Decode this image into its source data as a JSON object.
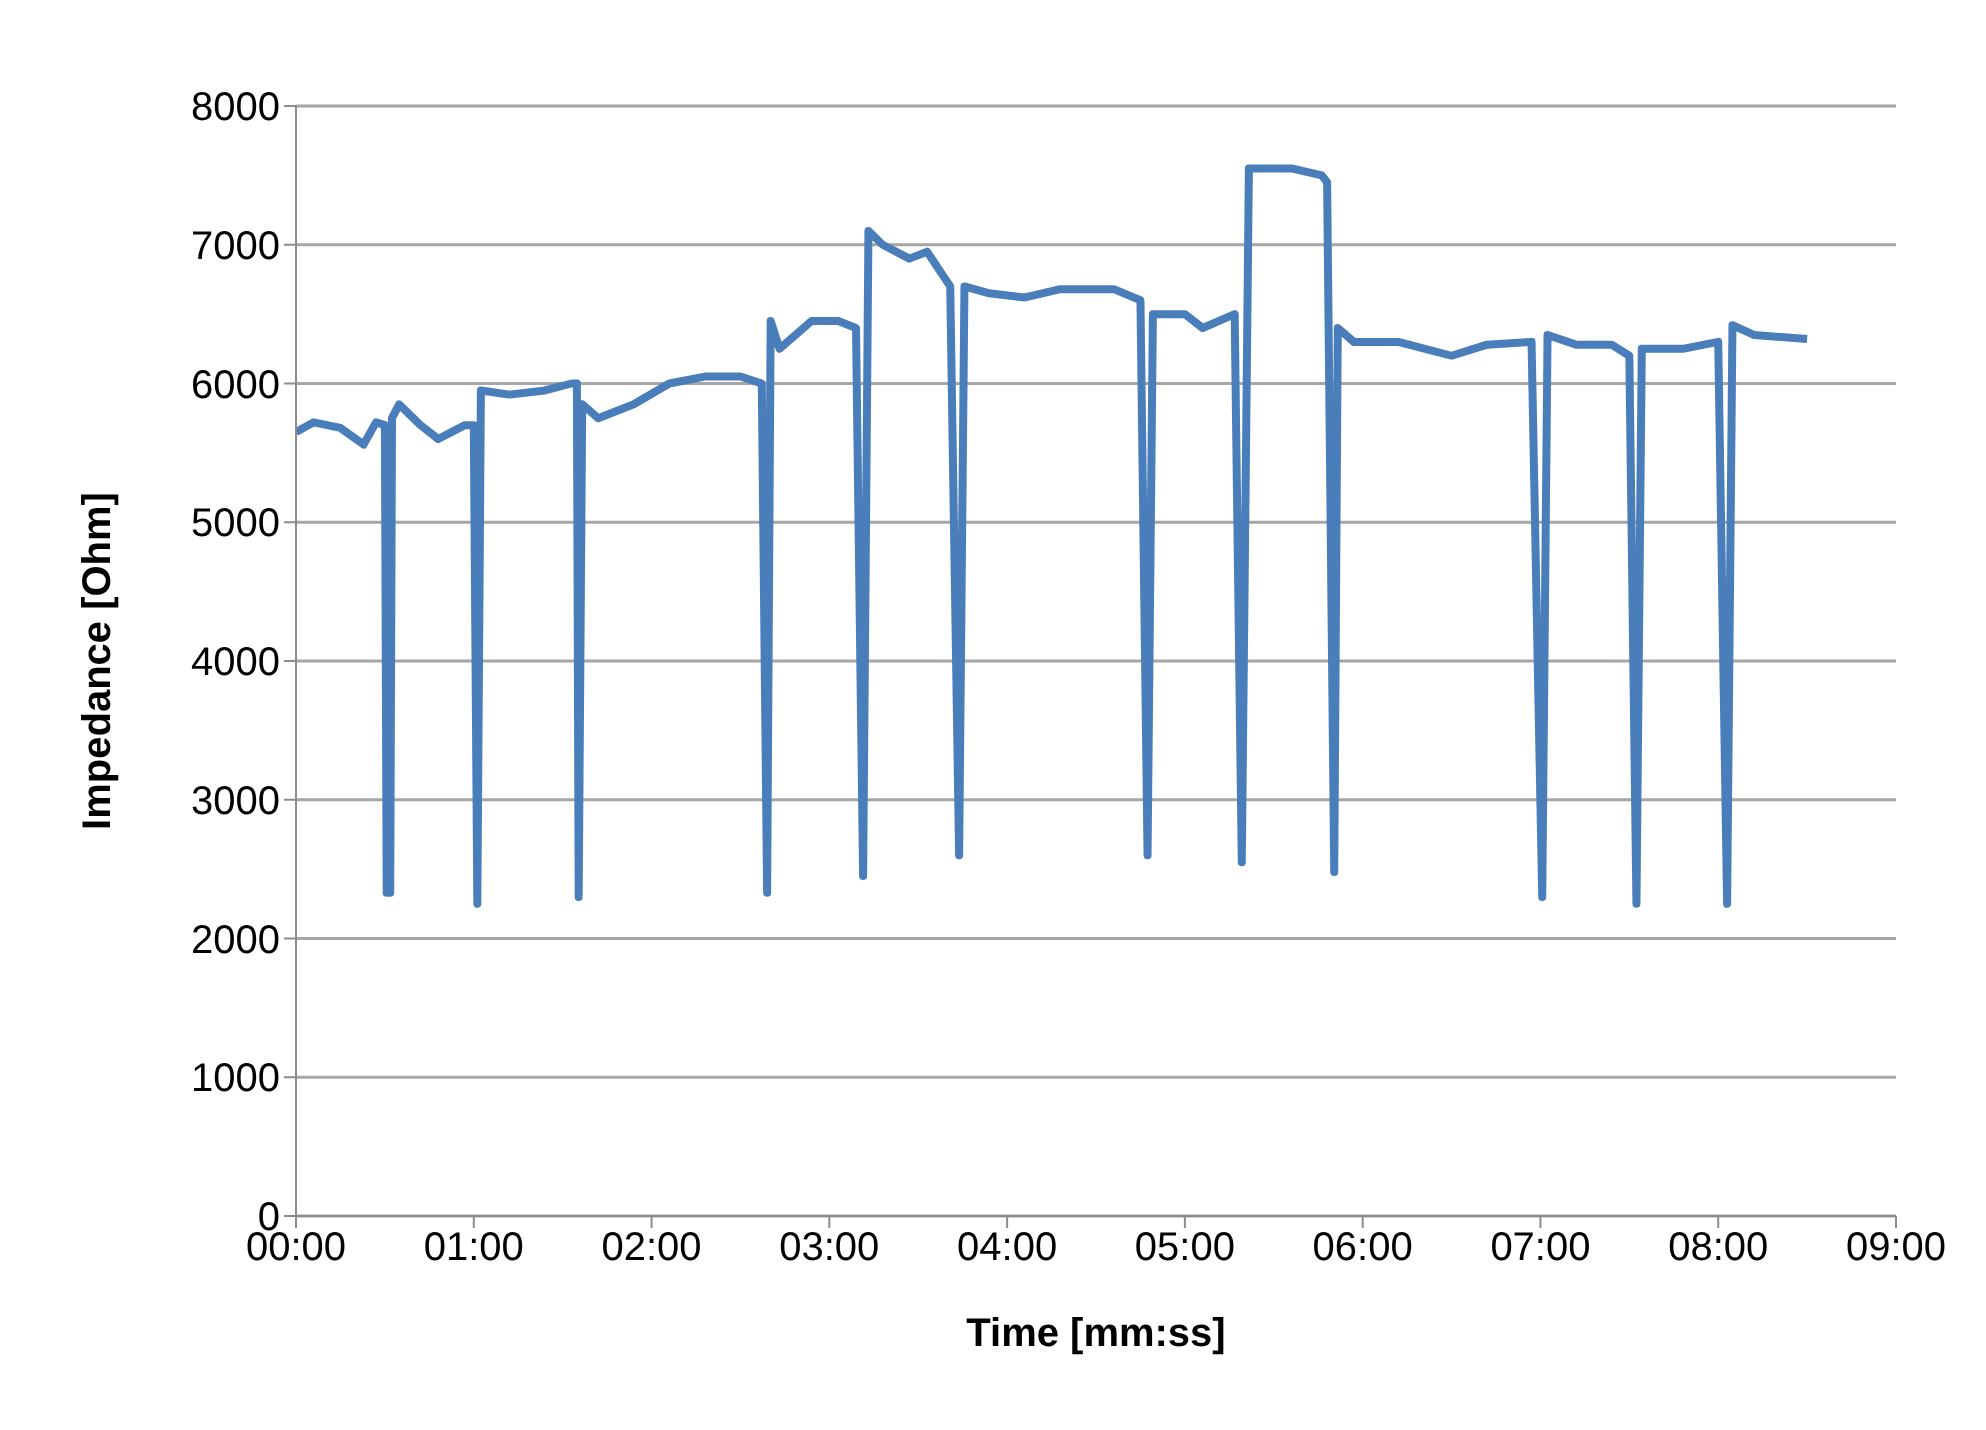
{
  "chart_data": {
    "type": "line",
    "xlabel": "Time [mm:ss]",
    "ylabel": "Impedance [Ohm]",
    "x": [
      0,
      0.1,
      0.25,
      0.38,
      0.45,
      0.5,
      0.51,
      0.53,
      0.54,
      0.58,
      0.7,
      0.8,
      0.95,
      1.0,
      1.02,
      1.04,
      1.2,
      1.4,
      1.55,
      1.58,
      1.59,
      1.61,
      1.7,
      1.9,
      2.1,
      2.3,
      2.5,
      2.62,
      2.65,
      2.67,
      2.72,
      2.9,
      3.05,
      3.15,
      3.19,
      3.22,
      3.3,
      3.45,
      3.55,
      3.68,
      3.73,
      3.76,
      3.9,
      4.1,
      4.3,
      4.6,
      4.75,
      4.79,
      4.82,
      5.0,
      5.1,
      5.28,
      5.32,
      5.36,
      5.6,
      5.77,
      5.8,
      5.84,
      5.86,
      5.95,
      6.2,
      6.5,
      6.7,
      6.95,
      7.01,
      7.04,
      7.2,
      7.4,
      7.5,
      7.54,
      7.57,
      7.8,
      8.0,
      8.05,
      8.08,
      8.2,
      8.5
    ],
    "series": [
      {
        "color": "#4a7ebb",
        "values": [
          5650,
          5720,
          5680,
          5560,
          5720,
          5700,
          2330,
          2330,
          5750,
          5850,
          5700,
          5600,
          5700,
          5700,
          2250,
          5950,
          5920,
          5950,
          6000,
          6000,
          2300,
          5850,
          5750,
          5850,
          6000,
          6050,
          6050,
          6000,
          2330,
          6450,
          6250,
          6450,
          6450,
          6400,
          2450,
          7100,
          7000,
          6900,
          6950,
          6700,
          2600,
          6700,
          6650,
          6620,
          6680,
          6680,
          6600,
          2600,
          6500,
          6500,
          6400,
          6500,
          2550,
          7550,
          7550,
          7500,
          7450,
          2480,
          6400,
          6300,
          6300,
          6200,
          6280,
          6300,
          2300,
          6350,
          6280,
          6280,
          6200,
          2250,
          6250,
          6250,
          6300,
          2250,
          6420,
          6350,
          6320
        ]
      }
    ],
    "xlim": [
      0,
      9
    ],
    "xticks": [
      {
        "value": 0,
        "label": "00:00"
      },
      {
        "value": 1,
        "label": "01:00"
      },
      {
        "value": 2,
        "label": "02:00"
      },
      {
        "value": 3,
        "label": "03:00"
      },
      {
        "value": 4,
        "label": "04:00"
      },
      {
        "value": 5,
        "label": "05:00"
      },
      {
        "value": 6,
        "label": "06:00"
      },
      {
        "value": 7,
        "label": "07:00"
      },
      {
        "value": 8,
        "label": "08:00"
      },
      {
        "value": 9,
        "label": "09:00"
      }
    ],
    "ylim": [
      0,
      8000
    ],
    "yticks": [
      0,
      1000,
      2000,
      3000,
      4000,
      5000,
      6000,
      7000,
      8000
    ],
    "grid": "y",
    "legend": false,
    "marker": "none",
    "line_style": "solid"
  }
}
